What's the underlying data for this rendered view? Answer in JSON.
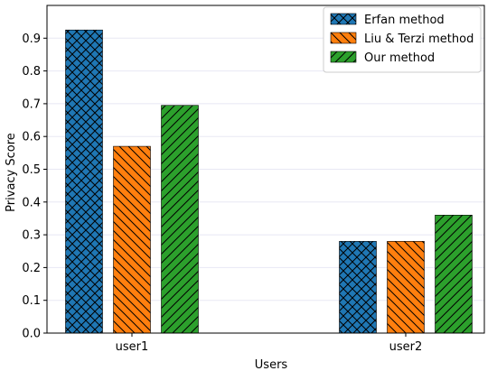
{
  "chart_data": {
    "type": "bar",
    "title": "",
    "xlabel": "Users",
    "ylabel": "Privacy Score",
    "categories": [
      "user1",
      "user2"
    ],
    "ylim": [
      0,
      1.0
    ],
    "yticks": [
      "0.0",
      "0.1",
      "0.2",
      "0.3",
      "0.4",
      "0.5",
      "0.6",
      "0.7",
      "0.8",
      "0.9"
    ],
    "grid": "horizontal",
    "legend_position": "top-right",
    "series": [
      {
        "name": "Erfan method",
        "values": [
          0.925,
          0.28
        ],
        "color": "#1f77b4",
        "hatch": "crosshatch"
      },
      {
        "name": "Liu & Terzi method",
        "values": [
          0.57,
          0.28
        ],
        "color": "#ff7f0e",
        "hatch": "backslash"
      },
      {
        "name": "Our method",
        "values": [
          0.695,
          0.36
        ],
        "color": "#2ca02c",
        "hatch": "slash"
      }
    ]
  }
}
